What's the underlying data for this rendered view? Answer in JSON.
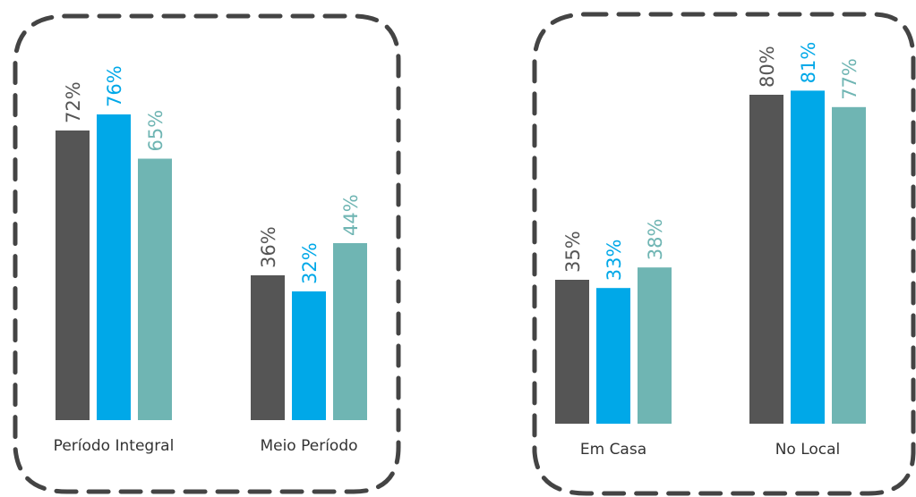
{
  "colors": {
    "series_0": "#555555",
    "series_1": "#00a8e8",
    "series_2": "#6fb5b3",
    "frame": "#444444"
  },
  "chart_data": [
    {
      "type": "bar",
      "title": "",
      "xlabel": "",
      "ylabel": "",
      "ylim": [
        0,
        100
      ],
      "grid": false,
      "legend": "none",
      "categories": [
        "Período Integral",
        "Meio Período"
      ],
      "series": [
        {
          "values": [
            72,
            36
          ],
          "labels": [
            "72%",
            "36%"
          ]
        },
        {
          "values": [
            76,
            32
          ],
          "labels": [
            "76%",
            "32%"
          ]
        },
        {
          "values": [
            65,
            44
          ],
          "labels": [
            "65%",
            "44%"
          ]
        }
      ]
    },
    {
      "type": "bar",
      "title": "",
      "xlabel": "",
      "ylabel": "",
      "ylim": [
        0,
        100
      ],
      "grid": false,
      "legend": "none",
      "categories": [
        "Em Casa",
        "No Local"
      ],
      "series": [
        {
          "values": [
            35,
            80
          ],
          "labels": [
            "35%",
            "80%"
          ]
        },
        {
          "values": [
            33,
            81
          ],
          "labels": [
            "33%",
            "81%"
          ]
        },
        {
          "values": [
            38,
            77
          ],
          "labels": [
            "38%",
            "77%"
          ]
        }
      ]
    }
  ]
}
